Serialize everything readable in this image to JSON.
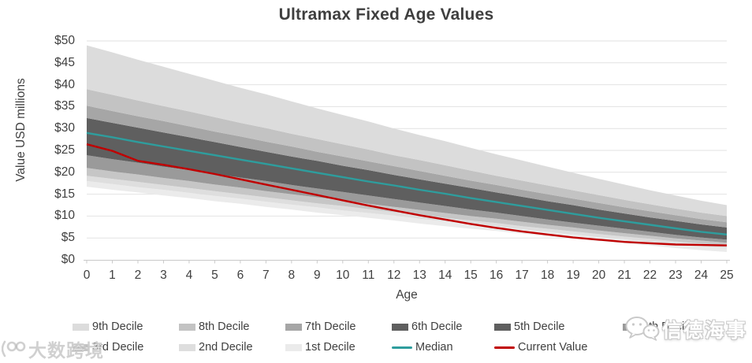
{
  "title": "Ultramax Fixed Age Values",
  "y_axis": {
    "title": "Value USD millions",
    "tick_labels": [
      "$0",
      "$5",
      "$10",
      "$15",
      "$20",
      "$25",
      "$30",
      "$35",
      "$40",
      "$45",
      "$50"
    ],
    "tick_values": [
      0,
      5,
      10,
      15,
      20,
      25,
      30,
      35,
      40,
      45,
      50
    ]
  },
  "x_axis": {
    "title": "Age",
    "tick_labels": [
      "0",
      "1",
      "2",
      "3",
      "4",
      "5",
      "6",
      "7",
      "8",
      "9",
      "10",
      "11",
      "12",
      "13",
      "14",
      "15",
      "16",
      "17",
      "18",
      "19",
      "20",
      "21",
      "22",
      "23",
      "24",
      "25"
    ]
  },
  "legend": {
    "rows": [
      [
        {
          "label": "9th Decile",
          "type": "box",
          "color": "#dcdcdc"
        },
        {
          "label": "8th Decile",
          "type": "box",
          "color": "#c3c3c3"
        },
        {
          "label": "7th Decile",
          "type": "box",
          "color": "#a6a6a6"
        },
        {
          "label": "6th Decile",
          "type": "box",
          "color": "#5f5f5f"
        },
        {
          "label": "5th Decile",
          "type": "box",
          "color": "#5f5f5f"
        },
        {
          "label": "4th Decile",
          "type": "box",
          "color": "#9a9a9a"
        }
      ],
      [
        {
          "label": "3rd Decile",
          "type": "box",
          "color": "#c6c6c6"
        },
        {
          "label": "2nd Decile",
          "type": "box",
          "color": "#dedede"
        },
        {
          "label": "1st Decile",
          "type": "box",
          "color": "#ebebeb"
        },
        {
          "label": "Median",
          "type": "line",
          "color": "#2e9d9d"
        },
        {
          "label": "Current Value",
          "type": "line",
          "color": "#c00000"
        }
      ]
    ]
  },
  "watermarks": {
    "left": "大数跨境",
    "right": "信德海事"
  },
  "colors": {
    "median": "#2e9d9d",
    "current_value": "#c00000",
    "gridline": "#e2e2e2",
    "axis_line": "#c9c9c9",
    "text": "#404040"
  },
  "chart_data": {
    "type": "area",
    "title": "Ultramax Fixed Age Values",
    "xlabel": "Age",
    "ylabel": "Value USD millions",
    "xlim": [
      0,
      25
    ],
    "ylim": [
      0,
      50
    ],
    "grid": true,
    "legend_position": "bottom",
    "x": [
      0,
      1,
      2,
      3,
      4,
      5,
      6,
      7,
      8,
      9,
      10,
      11,
      12,
      13,
      14,
      15,
      16,
      17,
      18,
      19,
      20,
      21,
      22,
      23,
      24,
      25
    ],
    "boundaries": {
      "b0": [
        16.7,
        16.0,
        15.4,
        14.7,
        14.1,
        13.4,
        12.8,
        12.1,
        11.5,
        10.8,
        10.2,
        9.6,
        9.0,
        8.3,
        7.7,
        7.1,
        6.6,
        6.0,
        5.4,
        4.9,
        4.3,
        3.8,
        3.3,
        2.7,
        2.2,
        1.8
      ],
      "b1": [
        18.0,
        17.3,
        16.6,
        16.0,
        15.3,
        14.6,
        14.0,
        13.3,
        12.6,
        12.0,
        11.3,
        10.7,
        10.1,
        9.4,
        8.8,
        8.2,
        7.6,
        7.0,
        6.4,
        5.8,
        5.2,
        4.7,
        4.1,
        3.6,
        3.1,
        2.7
      ],
      "b2": [
        19.2,
        18.5,
        17.8,
        17.1,
        16.4,
        15.7,
        15.0,
        14.3,
        13.6,
        12.9,
        12.3,
        11.6,
        10.9,
        10.3,
        9.6,
        9.0,
        8.4,
        7.7,
        7.1,
        6.5,
        5.9,
        5.3,
        4.8,
        4.2,
        3.7,
        3.3
      ],
      "b3": [
        21.0,
        20.2,
        19.5,
        18.7,
        18.0,
        17.2,
        16.5,
        15.7,
        15.0,
        14.3,
        13.6,
        12.8,
        12.1,
        11.4,
        10.7,
        10.0,
        9.4,
        8.7,
        8.0,
        7.4,
        6.7,
        6.1,
        5.5,
        4.9,
        4.4,
        3.9
      ],
      "b4": [
        23.9,
        23.0,
        22.2,
        21.3,
        20.5,
        19.6,
        18.8,
        18.0,
        17.1,
        16.3,
        15.5,
        14.7,
        13.9,
        13.1,
        12.3,
        11.5,
        10.8,
        10.0,
        9.2,
        8.5,
        7.8,
        7.1,
        6.4,
        5.7,
        5.1,
        4.6
      ],
      "b5": [
        29.0,
        28.0,
        26.9,
        25.9,
        24.9,
        23.9,
        22.9,
        21.9,
        20.9,
        19.9,
        18.9,
        17.9,
        17.0,
        16.0,
        15.1,
        14.1,
        13.2,
        12.3,
        11.4,
        10.5,
        9.6,
        8.8,
        8.0,
        7.2,
        6.4,
        5.8
      ],
      "b6": [
        32.4,
        31.3,
        30.2,
        29.1,
        28.0,
        26.9,
        25.8,
        24.7,
        23.6,
        22.6,
        21.5,
        20.5,
        19.4,
        18.4,
        17.4,
        16.4,
        15.4,
        14.4,
        13.4,
        12.5,
        11.5,
        10.6,
        9.7,
        8.9,
        8.1,
        7.4
      ],
      "b7": [
        35.2,
        34.0,
        32.8,
        31.7,
        30.5,
        29.3,
        28.2,
        27.0,
        25.9,
        24.7,
        23.6,
        22.5,
        21.4,
        20.3,
        19.2,
        18.1,
        17.1,
        16.0,
        15.0,
        14.0,
        13.0,
        12.0,
        11.1,
        10.2,
        9.3,
        8.6
      ],
      "b8": [
        39.0,
        37.7,
        36.4,
        35.1,
        33.9,
        32.6,
        31.3,
        30.1,
        28.8,
        27.6,
        26.4,
        25.2,
        23.9,
        22.8,
        21.6,
        20.4,
        19.2,
        18.1,
        17.0,
        15.9,
        14.8,
        13.7,
        12.7,
        11.7,
        10.8,
        10.0
      ],
      "b9": [
        49.0,
        47.4,
        45.7,
        44.1,
        42.5,
        40.9,
        39.3,
        37.8,
        36.2,
        34.6,
        33.1,
        31.6,
        30.0,
        28.5,
        27.1,
        25.6,
        24.1,
        22.7,
        21.3,
        19.9,
        18.5,
        17.2,
        15.9,
        14.7,
        13.5,
        12.5
      ]
    },
    "bands": [
      {
        "name": "1st Decile",
        "lower": "b0",
        "upper": "b1",
        "color": "#ebebeb"
      },
      {
        "name": "2nd Decile",
        "lower": "b1",
        "upper": "b2",
        "color": "#dedede"
      },
      {
        "name": "3rd Decile",
        "lower": "b2",
        "upper": "b3",
        "color": "#c6c6c6"
      },
      {
        "name": "4th Decile",
        "lower": "b3",
        "upper": "b4",
        "color": "#9a9a9a"
      },
      {
        "name": "5th Decile",
        "lower": "b4",
        "upper": "b5",
        "color": "#5f5f5f"
      },
      {
        "name": "6th Decile",
        "lower": "b5",
        "upper": "b6",
        "color": "#5f5f5f"
      },
      {
        "name": "7th Decile",
        "lower": "b6",
        "upper": "b7",
        "color": "#a6a6a6"
      },
      {
        "name": "8th Decile",
        "lower": "b7",
        "upper": "b8",
        "color": "#c3c3c3"
      },
      {
        "name": "9th Decile",
        "lower": "b8",
        "upper": "b9",
        "color": "#dcdcdc"
      }
    ],
    "series": [
      {
        "name": "Median",
        "color": "#2e9d9d",
        "values": [
          29.0,
          28.0,
          26.9,
          25.9,
          24.9,
          23.9,
          22.9,
          21.9,
          20.9,
          19.9,
          18.9,
          17.9,
          17.0,
          16.0,
          15.1,
          14.1,
          13.2,
          12.3,
          11.4,
          10.5,
          9.6,
          8.8,
          8.0,
          7.2,
          6.4,
          5.8
        ]
      },
      {
        "name": "Current Value",
        "color": "#c00000",
        "values": [
          26.4,
          24.9,
          22.6,
          21.7,
          20.7,
          19.6,
          18.4,
          17.2,
          16.0,
          14.8,
          13.6,
          12.4,
          11.3,
          10.2,
          9.2,
          8.2,
          7.3,
          6.5,
          5.8,
          5.1,
          4.6,
          4.1,
          3.8,
          3.5,
          3.4,
          3.3
        ]
      }
    ]
  }
}
